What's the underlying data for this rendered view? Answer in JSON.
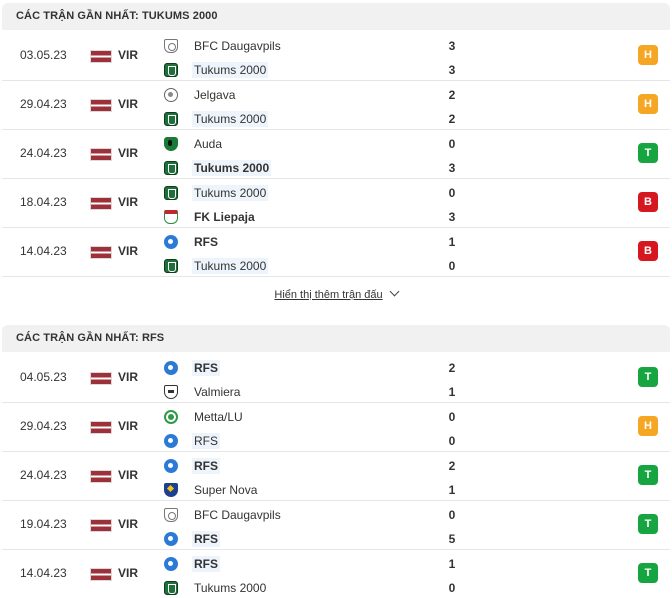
{
  "sections": [
    {
      "title": "CÁC TRẬN GẦN NHẤT: TUKUMS 2000",
      "matches": [
        {
          "date": "03.05.23",
          "league": "VIR",
          "home": "BFC Daugavpils",
          "home_crest": "bfc-icon",
          "away": "Tukums 2000",
          "away_crest": "tukums-icon",
          "home_score": "3",
          "away_score": "3",
          "result": "H",
          "result_color": "#f5a623"
        },
        {
          "date": "29.04.23",
          "league": "VIR",
          "home": "Jelgava",
          "home_crest": "jelgava-icon",
          "away": "Tukums 2000",
          "away_crest": "tukums-icon",
          "home_score": "2",
          "away_score": "2",
          "result": "H",
          "result_color": "#f5a623"
        },
        {
          "date": "24.04.23",
          "league": "VIR",
          "home": "Auda",
          "home_crest": "auda-icon",
          "away": "Tukums 2000",
          "away_crest": "tukums-icon",
          "home_score": "0",
          "away_score": "3",
          "result": "T",
          "result_color": "#16a541"
        },
        {
          "date": "18.04.23",
          "league": "VIR",
          "home": "Tukums 2000",
          "home_crest": "tukums-icon",
          "away": "FK Liepaja",
          "away_crest": "liepaja-icon",
          "home_score": "0",
          "away_score": "3",
          "result": "B",
          "result_color": "#d7171f"
        },
        {
          "date": "14.04.23",
          "league": "VIR",
          "home": "RFS",
          "home_crest": "rfs-icon",
          "away": "Tukums 2000",
          "away_crest": "tukums-icon",
          "home_score": "1",
          "away_score": "0",
          "result": "B",
          "result_color": "#d7171f"
        }
      ]
    },
    {
      "title": "CÁC TRẬN GẦN NHẤT: RFS",
      "matches": [
        {
          "date": "04.05.23",
          "league": "VIR",
          "home": "RFS",
          "home_crest": "rfs-icon",
          "away": "Valmiera",
          "away_crest": "valmiera-icon",
          "home_score": "2",
          "away_score": "1",
          "result": "T",
          "result_color": "#16a541"
        },
        {
          "date": "29.04.23",
          "league": "VIR",
          "home": "Metta/LU",
          "home_crest": "metta-icon",
          "away": "RFS",
          "away_crest": "rfs-icon",
          "home_score": "0",
          "away_score": "0",
          "result": "H",
          "result_color": "#f5a623"
        },
        {
          "date": "24.04.23",
          "league": "VIR",
          "home": "RFS",
          "home_crest": "rfs-icon",
          "away": "Super Nova",
          "away_crest": "supernova-icon",
          "home_score": "2",
          "away_score": "1",
          "result": "T",
          "result_color": "#16a541"
        },
        {
          "date": "19.04.23",
          "league": "VIR",
          "home": "BFC Daugavpils",
          "home_crest": "bfc-icon",
          "away": "RFS",
          "away_crest": "rfs-icon",
          "home_score": "0",
          "away_score": "5",
          "result": "T",
          "result_color": "#16a541"
        },
        {
          "date": "14.04.23",
          "league": "VIR",
          "home": "RFS",
          "home_crest": "rfs-icon",
          "away": "Tukums 2000",
          "away_crest": "tukums-icon",
          "home_score": "1",
          "away_score": "0",
          "result": "T",
          "result_color": "#16a541"
        }
      ]
    }
  ],
  "show_more_label": "Hiển thị thêm trận đấu"
}
